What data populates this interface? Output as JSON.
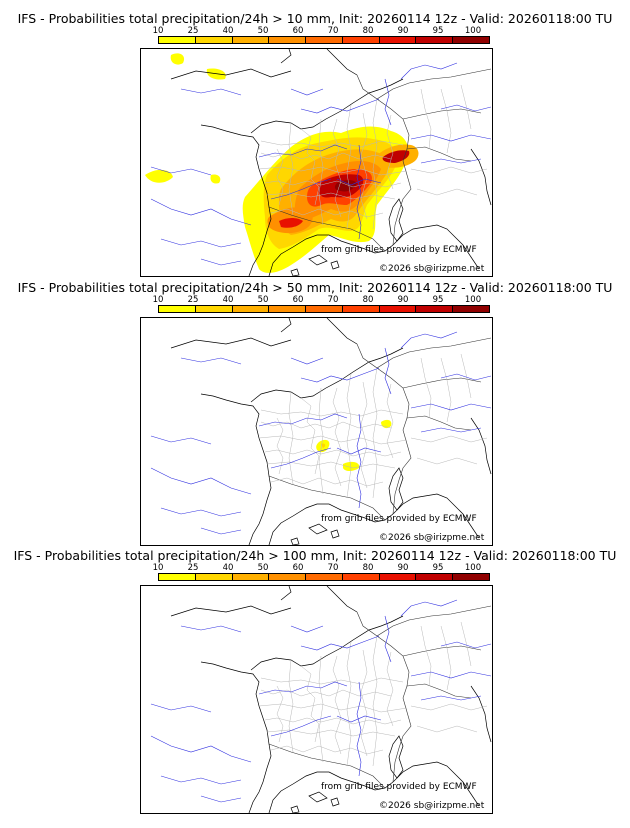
{
  "scale": {
    "ticks": [
      "10",
      "25",
      "40",
      "50",
      "60",
      "70",
      "80",
      "90",
      "95",
      "100"
    ],
    "colors": [
      "#ffff00",
      "#ffd700",
      "#ffb000",
      "#ff9000",
      "#ff6a00",
      "#ff4000",
      "#e81000",
      "#c00000",
      "#900000",
      "#600000"
    ]
  },
  "credits": {
    "source": "from grib files provided by ECMWF",
    "copyright": "©2026 sb@irizpme.net"
  },
  "panels": [
    {
      "title": "IFS - Probabilities total precipitation/24h > 10 mm, Init: 20260114 12z - Valid: 20260118:00 TU"
    },
    {
      "title": "IFS - Probabilities total precipitation/24h > 50 mm, Init: 20260114 12z - Valid: 20260118:00 TU"
    },
    {
      "title": "IFS - Probabilities total precipitation/24h > 100 mm, Init: 20260114 12z - Valid: 20260118:00 TU"
    }
  ]
}
